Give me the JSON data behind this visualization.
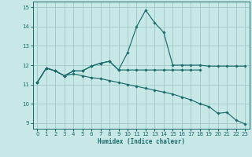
{
  "xlabel": "Humidex (Indice chaleur)",
  "xlim": [
    -0.5,
    23.5
  ],
  "ylim": [
    8.7,
    15.3
  ],
  "xticks": [
    0,
    1,
    2,
    3,
    4,
    5,
    6,
    7,
    8,
    9,
    10,
    11,
    12,
    13,
    14,
    15,
    16,
    17,
    18,
    19,
    20,
    21,
    22,
    23
  ],
  "yticks": [
    9,
    10,
    11,
    12,
    13,
    14,
    15
  ],
  "background_color": "#c8e8e8",
  "grid_color": "#a0c8c8",
  "line_color": "#1a6b6b",
  "line1_x": [
    0,
    1,
    2,
    3,
    4,
    5,
    6,
    7,
    8,
    9,
    10,
    11,
    12,
    13,
    14,
    15,
    16,
    17,
    18,
    19,
    20,
    21,
    22,
    23
  ],
  "line1_y": [
    11.1,
    11.85,
    11.7,
    11.45,
    11.7,
    11.7,
    11.95,
    12.1,
    12.2,
    11.75,
    12.65,
    14.0,
    14.85,
    14.2,
    13.7,
    12.0,
    12.0,
    12.0,
    12.0,
    11.95,
    11.95,
    11.95,
    11.95,
    11.95
  ],
  "line2_x": [
    0,
    1,
    2,
    3,
    4,
    5,
    6,
    7,
    8,
    9,
    10,
    11,
    12,
    13,
    14,
    15,
    16,
    17,
    18
  ],
  "line2_y": [
    11.1,
    11.85,
    11.7,
    11.45,
    11.7,
    11.7,
    11.95,
    12.1,
    12.2,
    11.75,
    11.75,
    11.75,
    11.75,
    11.75,
    11.75,
    11.75,
    11.75,
    11.75,
    11.75
  ],
  "line3_x": [
    0,
    1,
    2,
    3,
    4,
    5,
    6,
    7,
    8,
    9,
    10,
    11,
    12,
    13,
    14,
    15,
    16,
    17,
    18,
    19,
    20,
    21,
    22,
    23
  ],
  "line3_y": [
    11.1,
    11.85,
    11.7,
    11.45,
    11.55,
    11.45,
    11.35,
    11.3,
    11.2,
    11.1,
    11.0,
    10.9,
    10.8,
    10.7,
    10.6,
    10.5,
    10.35,
    10.2,
    10.0,
    9.85,
    9.5,
    9.55,
    9.15,
    8.95
  ]
}
